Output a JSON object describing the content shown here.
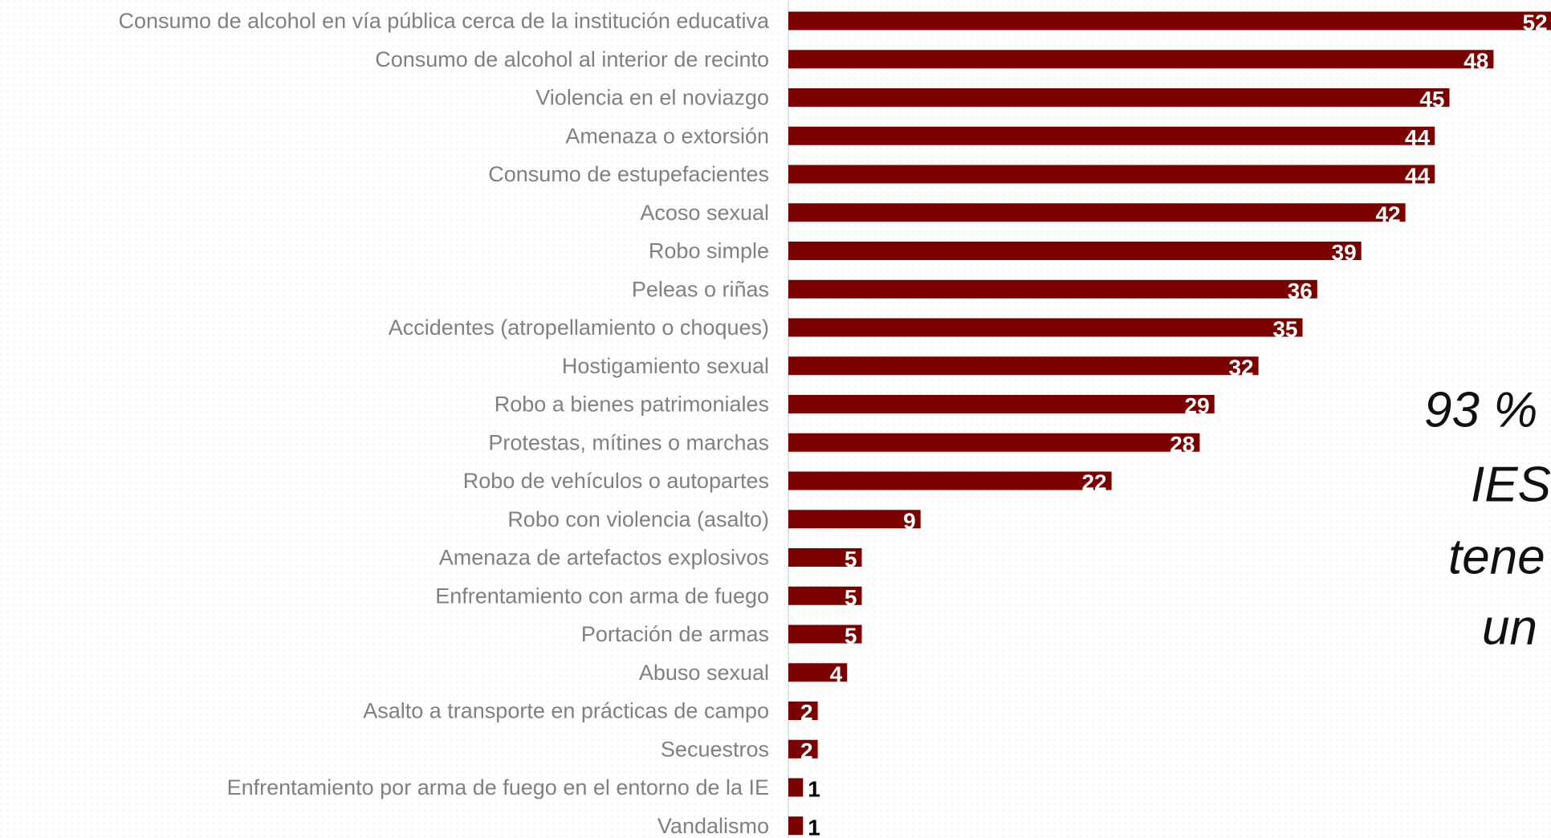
{
  "chart_data": {
    "type": "barh",
    "categories": [
      "Consumo de alcohol en vía pública cerca de la institución educativa",
      "Consumo de alcohol al interior de recinto",
      "Violencia en el noviazgo",
      "Amenaza o extorsión",
      "Consumo de estupefacientes",
      "Acoso sexual",
      "Robo simple",
      "Peleas o riñas",
      "Accidentes (atropellamiento o choques)",
      "Hostigamiento sexual",
      "Robo a bienes patrimoniales",
      "Protestas, mítines o marchas",
      "Robo de vehículos o autopartes",
      "Robo con violencia (asalto)",
      "Amenaza de artefactos explosivos",
      "Enfrentamiento con arma de fuego",
      "Portación de armas",
      "Abuso sexual",
      "Asalto a transporte en prácticas de campo",
      "Secuestros",
      "Enfrentamiento por arma de fuego en el entorno de la IE",
      "Vandalismo"
    ],
    "values": [
      52,
      48,
      45,
      44,
      44,
      42,
      39,
      36,
      35,
      32,
      29,
      28,
      22,
      9,
      5,
      5,
      5,
      4,
      2,
      2,
      1,
      1
    ],
    "color": "#7b0000",
    "annotation_lines": [
      "93 %",
      "IES",
      "tene",
      "un"
    ]
  }
}
